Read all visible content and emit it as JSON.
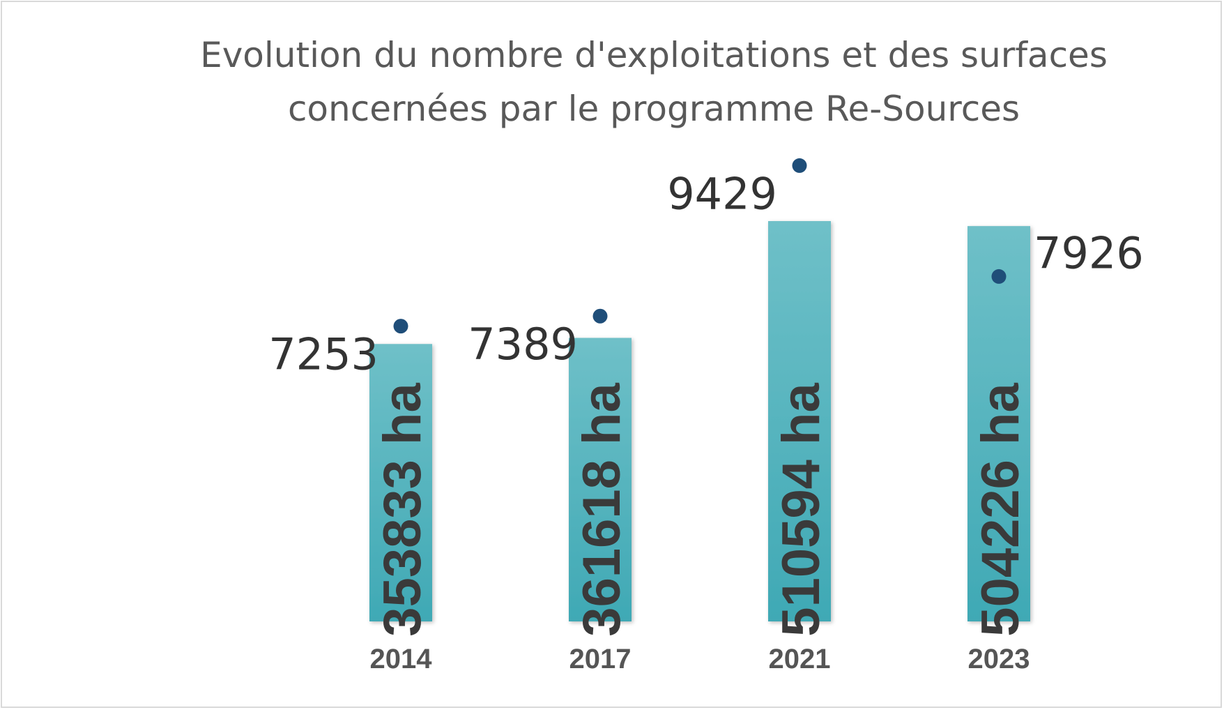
{
  "chart_data": {
    "type": "bar",
    "title_lines": [
      "Evolution du nombre d'exploitations et des surfaces",
      "concernées par le programme Re-Sources"
    ],
    "categories": [
      "2014",
      "2017",
      "2021",
      "2023"
    ],
    "series": [
      {
        "name": "Surfaces",
        "chart": "bar",
        "values": [
          353833,
          361618,
          510594,
          504226
        ],
        "labels": [
          "353833 ha",
          "361618 ha",
          "510594 ha",
          "504226 ha"
        ],
        "color": "#4fb3bf"
      },
      {
        "name": "Exploitations",
        "chart": "scatter",
        "values": [
          7253,
          7389,
          9429,
          7926
        ],
        "labels": [
          "7253",
          "7389",
          "9429",
          "7926"
        ],
        "color": "#1f4e79"
      }
    ],
    "xlabel": "",
    "ylabel": "",
    "grid": false,
    "legend": "none"
  }
}
